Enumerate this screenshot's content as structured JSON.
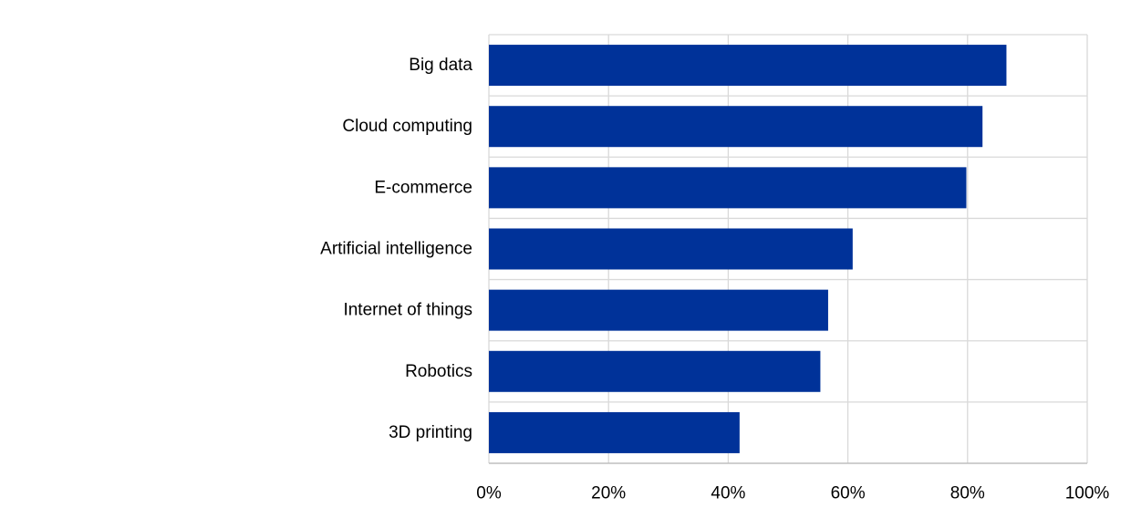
{
  "chart_data": {
    "type": "bar",
    "orientation": "horizontal",
    "categories": [
      "Big data",
      "Cloud computing",
      "E-commerce",
      "Artificial intelligence",
      "Internet of things",
      "Robotics",
      "3D printing"
    ],
    "values": [
      86.5,
      82.5,
      79.8,
      60.8,
      56.7,
      55.4,
      41.9
    ],
    "xlim": [
      0,
      100
    ],
    "xticks": [
      "0%",
      "20%",
      "40%",
      "60%",
      "80%",
      "100%"
    ],
    "xtick_values": [
      0,
      20,
      40,
      60,
      80,
      100
    ],
    "grid": true,
    "legend": "none",
    "bar_color": "#003299"
  }
}
